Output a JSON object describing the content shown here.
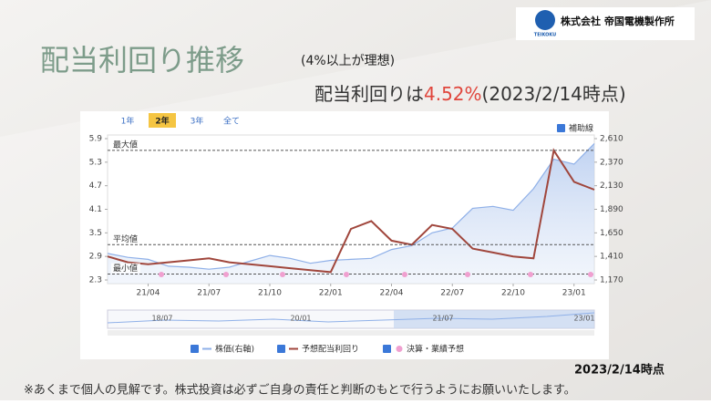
{
  "logo": {
    "company": "株式会社 帝国電機製作所",
    "brand": "TEIKOKU"
  },
  "header": {
    "title": "配当利回り推移",
    "note": "(4%以上が理想)",
    "lead": "配当利回りは",
    "highlight": "4.52%",
    "asof": "(2023/2/14時点)"
  },
  "footer": {
    "date": "2023/2/14時点",
    "disclaimer": "※あくまで個人の見解です。株式投資は必ずご自身の責任と判断のもとで行うようにお願いいたします。"
  },
  "controls": {
    "ranges": [
      "1年",
      "2年",
      "3年",
      "全て"
    ],
    "active_range": "2年",
    "guide_toggle": "補助線"
  },
  "chart_data": {
    "type": "line",
    "categories": [
      null,
      null,
      "21/04",
      null,
      null,
      "21/07",
      null,
      null,
      "21/10",
      null,
      null,
      "22/01",
      null,
      null,
      "22/04",
      null,
      null,
      "22/07",
      null,
      null,
      "22/10",
      null,
      null,
      "23/01",
      null
    ],
    "series": [
      {
        "name": "株価(右軸)",
        "color": "#8fb0e8",
        "axis": "y2",
        "values": [
          1440,
          1400,
          1380,
          1310,
          1300,
          1280,
          1300,
          1360,
          1420,
          1390,
          1340,
          1370,
          1380,
          1390,
          1480,
          1520,
          1650,
          1700,
          1900,
          1920,
          1880,
          2100,
          2400,
          2350,
          2560
        ]
      },
      {
        "name": "予想配当利回り",
        "color": "#a0463c",
        "values": [
          2.9,
          2.75,
          2.7,
          2.75,
          2.8,
          2.85,
          2.75,
          2.7,
          2.65,
          2.6,
          2.55,
          2.5,
          3.6,
          3.8,
          3.3,
          3.2,
          3.7,
          3.6,
          3.1,
          3.0,
          2.9,
          2.85,
          5.6,
          4.8,
          4.6
        ]
      }
    ],
    "events_legend": "決算・業績予想",
    "reference_lines": [
      {
        "label": "最大値",
        "value": 5.6
      },
      {
        "label": "平均値",
        "value": 3.2
      },
      {
        "label": "最小値",
        "value": 2.45
      }
    ],
    "ylim": [
      2.3,
      5.9
    ],
    "yticks": [
      2.3,
      2.9,
      3.5,
      4.1,
      4.7,
      5.3,
      5.9
    ],
    "y2lim": [
      1170,
      2610
    ],
    "y2ticks": [
      {
        "value": 1170,
        "label": "1,170"
      },
      {
        "value": 1410,
        "label": "1,410"
      },
      {
        "value": 1650,
        "label": "1,650"
      },
      {
        "value": 1890,
        "label": "1,890"
      },
      {
        "value": 2130,
        "label": "2,130"
      },
      {
        "value": 2370,
        "label": "2,370"
      },
      {
        "value": 2610,
        "label": "2,610"
      }
    ],
    "navigator_labels": [
      "18/07",
      "20/01",
      "21/07",
      "23/01"
    ]
  }
}
